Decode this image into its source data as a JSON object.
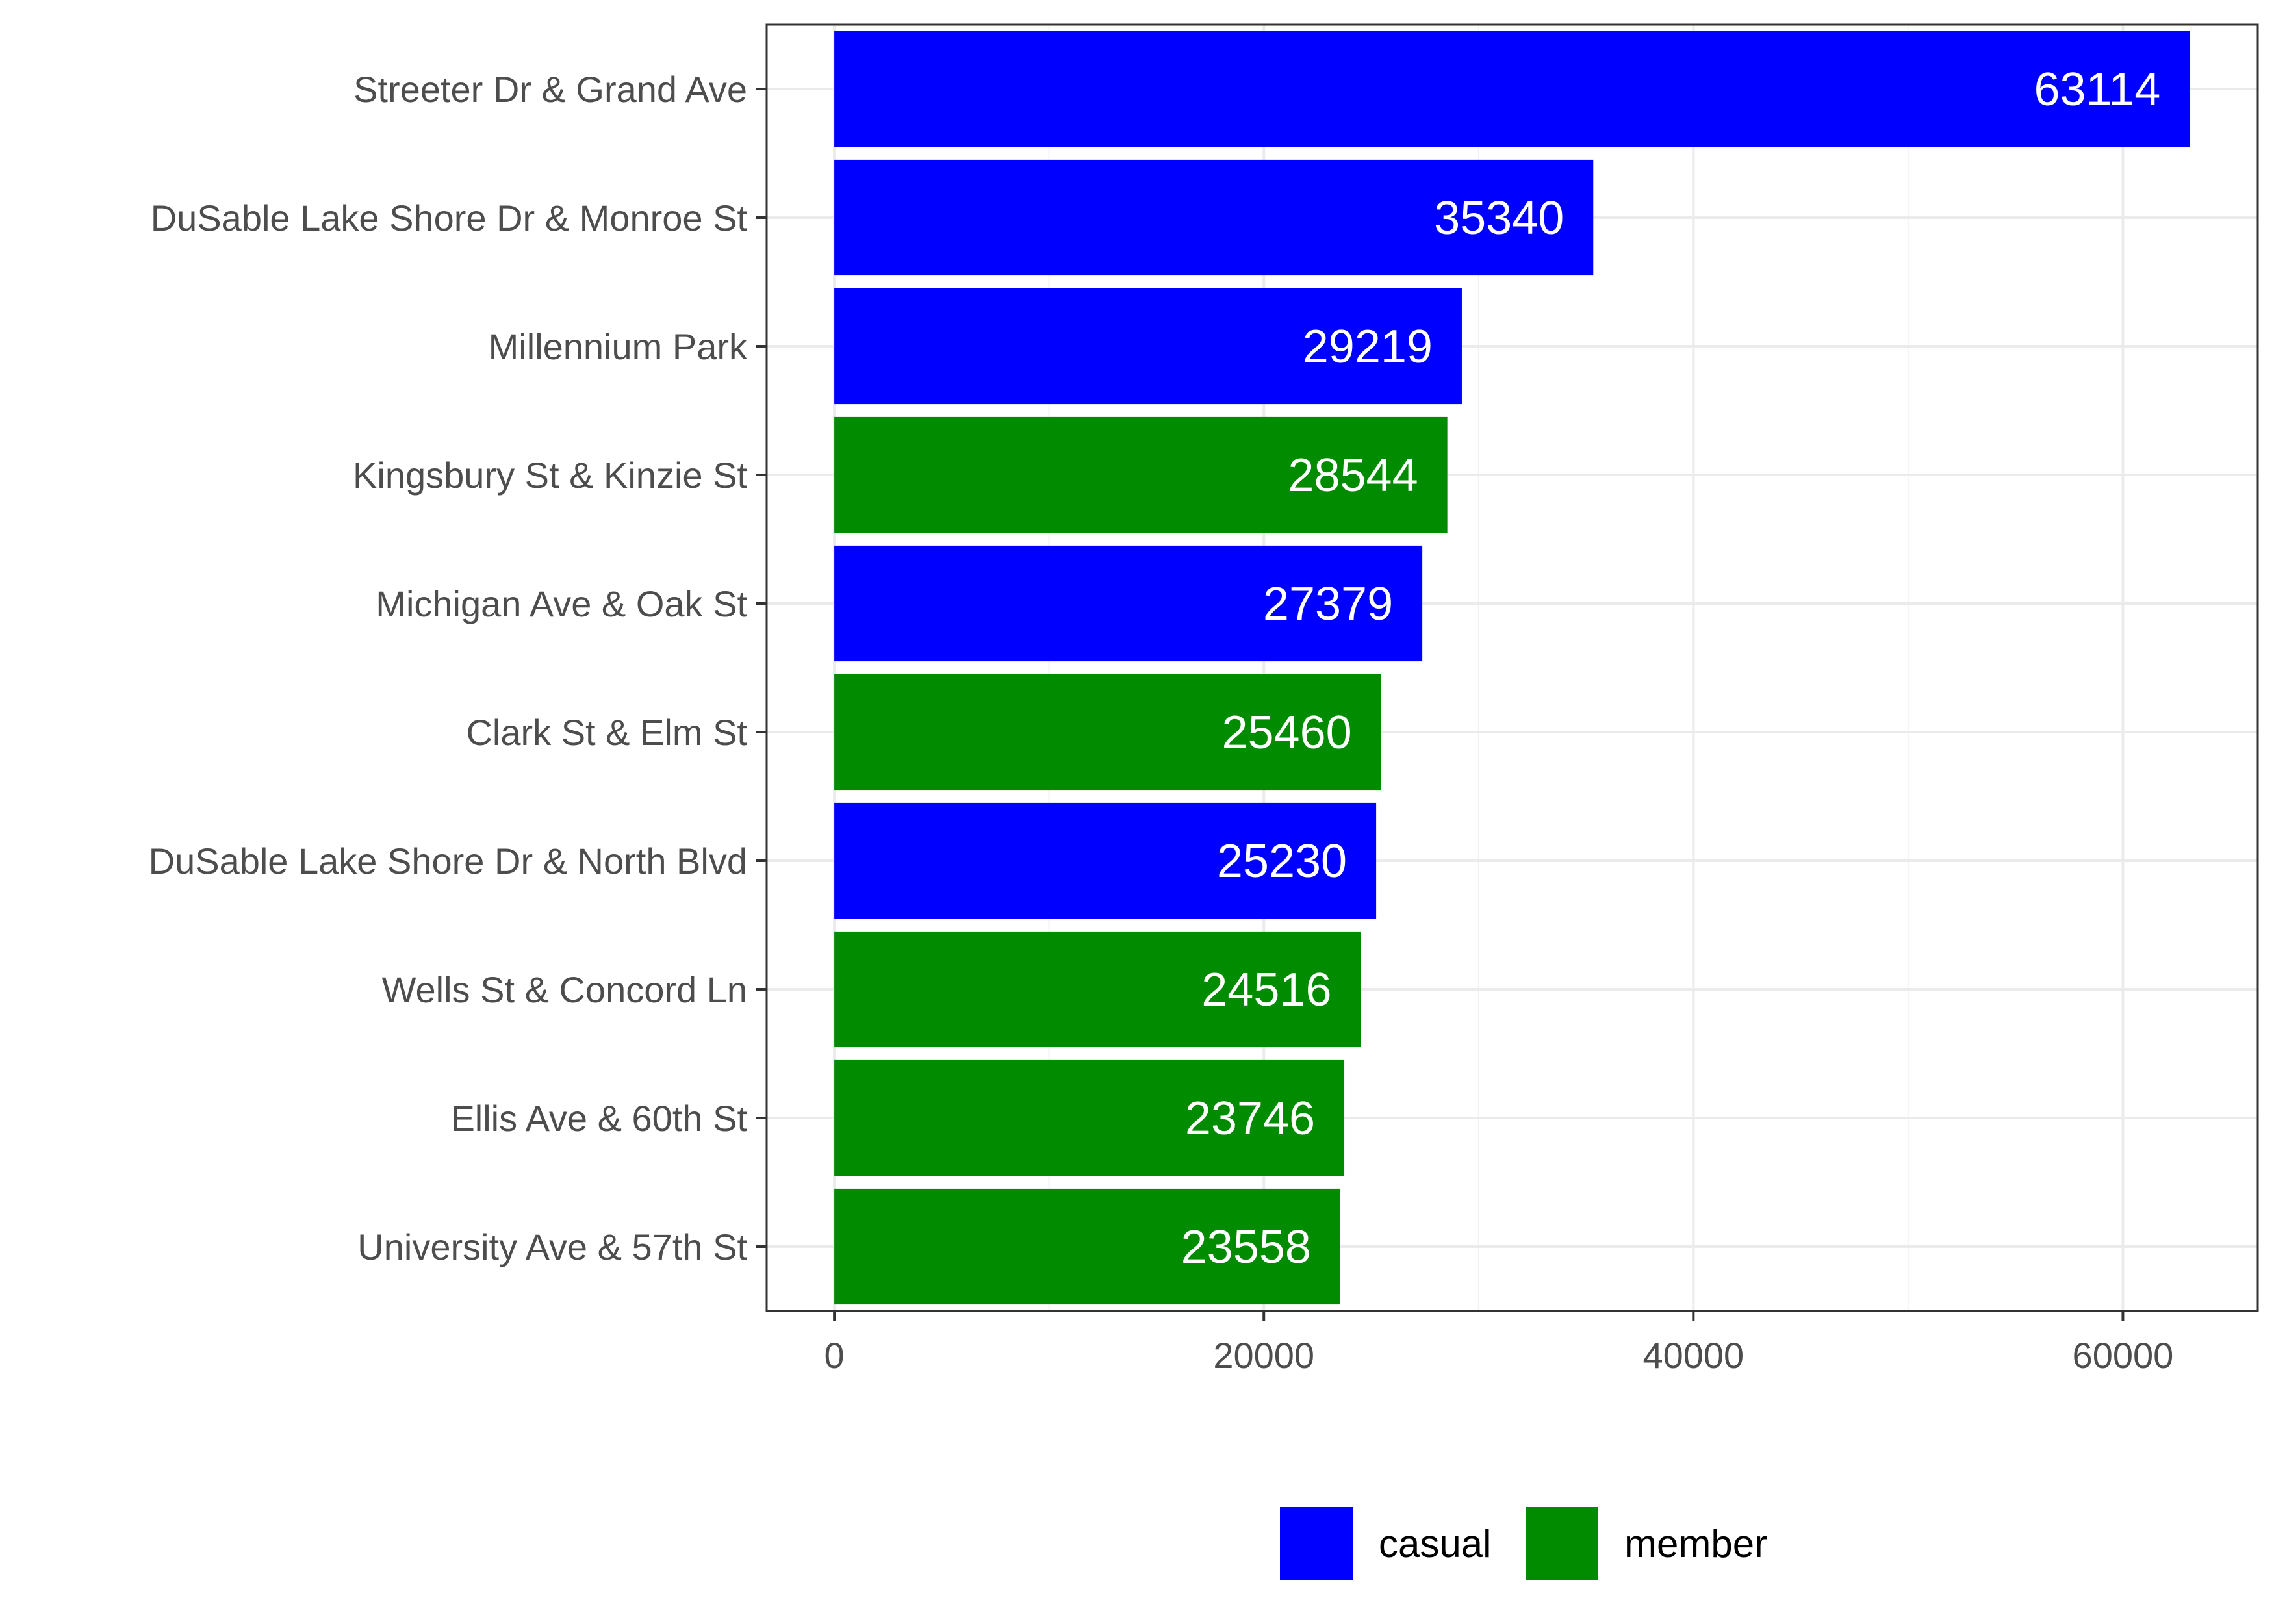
{
  "chart_data": {
    "type": "bar",
    "orientation": "horizontal",
    "categories": [
      "Streeter Dr & Grand Ave",
      "DuSable Lake Shore Dr & Monroe St",
      "Millennium Park",
      "Kingsbury St & Kinzie St",
      "Michigan Ave & Oak St",
      "Clark St & Elm St",
      "DuSable Lake Shore Dr & North Blvd",
      "Wells St & Concord Ln",
      "Ellis Ave & 60th St",
      "University Ave & 57th St"
    ],
    "values": [
      63114,
      35340,
      29219,
      28544,
      27379,
      25460,
      25230,
      24516,
      23746,
      23558
    ],
    "groups": [
      "casual",
      "casual",
      "casual",
      "member",
      "casual",
      "member",
      "casual",
      "member",
      "member",
      "member"
    ],
    "data_labels": [
      "63114",
      "35340",
      "29219",
      "28544",
      "27379",
      "25460",
      "25230",
      "24516",
      "23746",
      "23558"
    ],
    "title": "",
    "xlabel": "",
    "ylabel": "",
    "xlim": [
      -3150,
      66280
    ],
    "x_ticks": [
      0,
      20000,
      40000,
      60000
    ],
    "x_tick_labels": [
      "0",
      "20000",
      "40000",
      "60000"
    ],
    "grid": true,
    "legend": {
      "position": "bottom",
      "entries": [
        {
          "name": "casual",
          "color": "#0000ff"
        },
        {
          "name": "member",
          "color": "#008b00"
        }
      ]
    }
  }
}
